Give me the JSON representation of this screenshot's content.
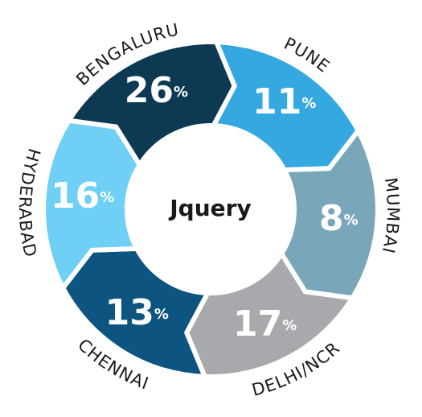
{
  "chart_data": {
    "type": "segmented-ring",
    "title": "Jquery",
    "categories": [
      "BENGALURU",
      "PUNE",
      "MUMBAI",
      "DELHI/NCR",
      "CHENNAI",
      "HYDERABAD"
    ],
    "values": [
      26,
      11,
      8,
      17,
      13,
      16
    ],
    "value_labels": [
      "26%",
      "11%",
      "8%",
      "17%",
      "13%",
      "16%"
    ],
    "colors": [
      "#0d3a52",
      "#35a8e0",
      "#7aa6ba",
      "#a7a9ac",
      "#0d5480",
      "#6fcff5"
    ]
  }
}
